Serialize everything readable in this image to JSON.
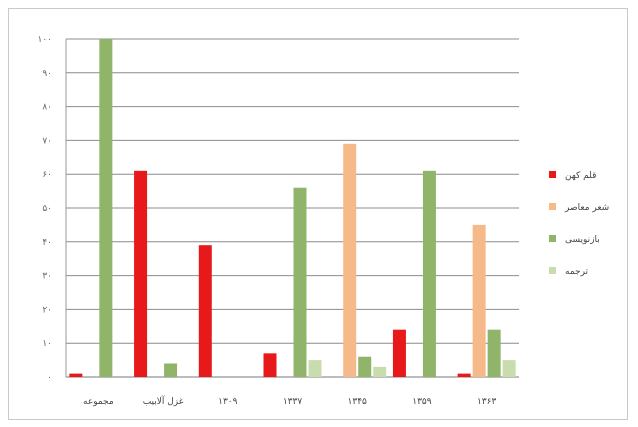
{
  "chart_data": {
    "type": "bar",
    "categories": [
      "مجموعه",
      "غزل آلابیب",
      "۱۳۰۹",
      "۱۳۳۷",
      "۱۳۴۵",
      "۱۳۵۹",
      "۱۳۶۳"
    ],
    "y_ticks": [
      "۰",
      "۱۰",
      "۲۰",
      "۳۰",
      "۴۰",
      "۵۰",
      "۶۰",
      "۷۰",
      "۸۰",
      "۹۰",
      "۱۰۰"
    ],
    "ylim": [
      0,
      100
    ],
    "grid": true,
    "legend_position": "right",
    "series": [
      {
        "name": "قلم کهن",
        "color": "#e8191b",
        "values": [
          1,
          61,
          39,
          7,
          0,
          14,
          1
        ]
      },
      {
        "name": "شعر معاصر",
        "color": "#f6b98a",
        "values": [
          0,
          0,
          0,
          0,
          69,
          0,
          45
        ]
      },
      {
        "name": "بازنویسی",
        "color": "#8fb46a",
        "values": [
          100,
          4,
          0,
          56,
          6,
          61,
          14
        ]
      },
      {
        "name": "ترجمه",
        "color": "#c9dcae",
        "values": [
          0,
          0,
          0,
          5,
          3,
          0,
          5
        ]
      }
    ]
  }
}
